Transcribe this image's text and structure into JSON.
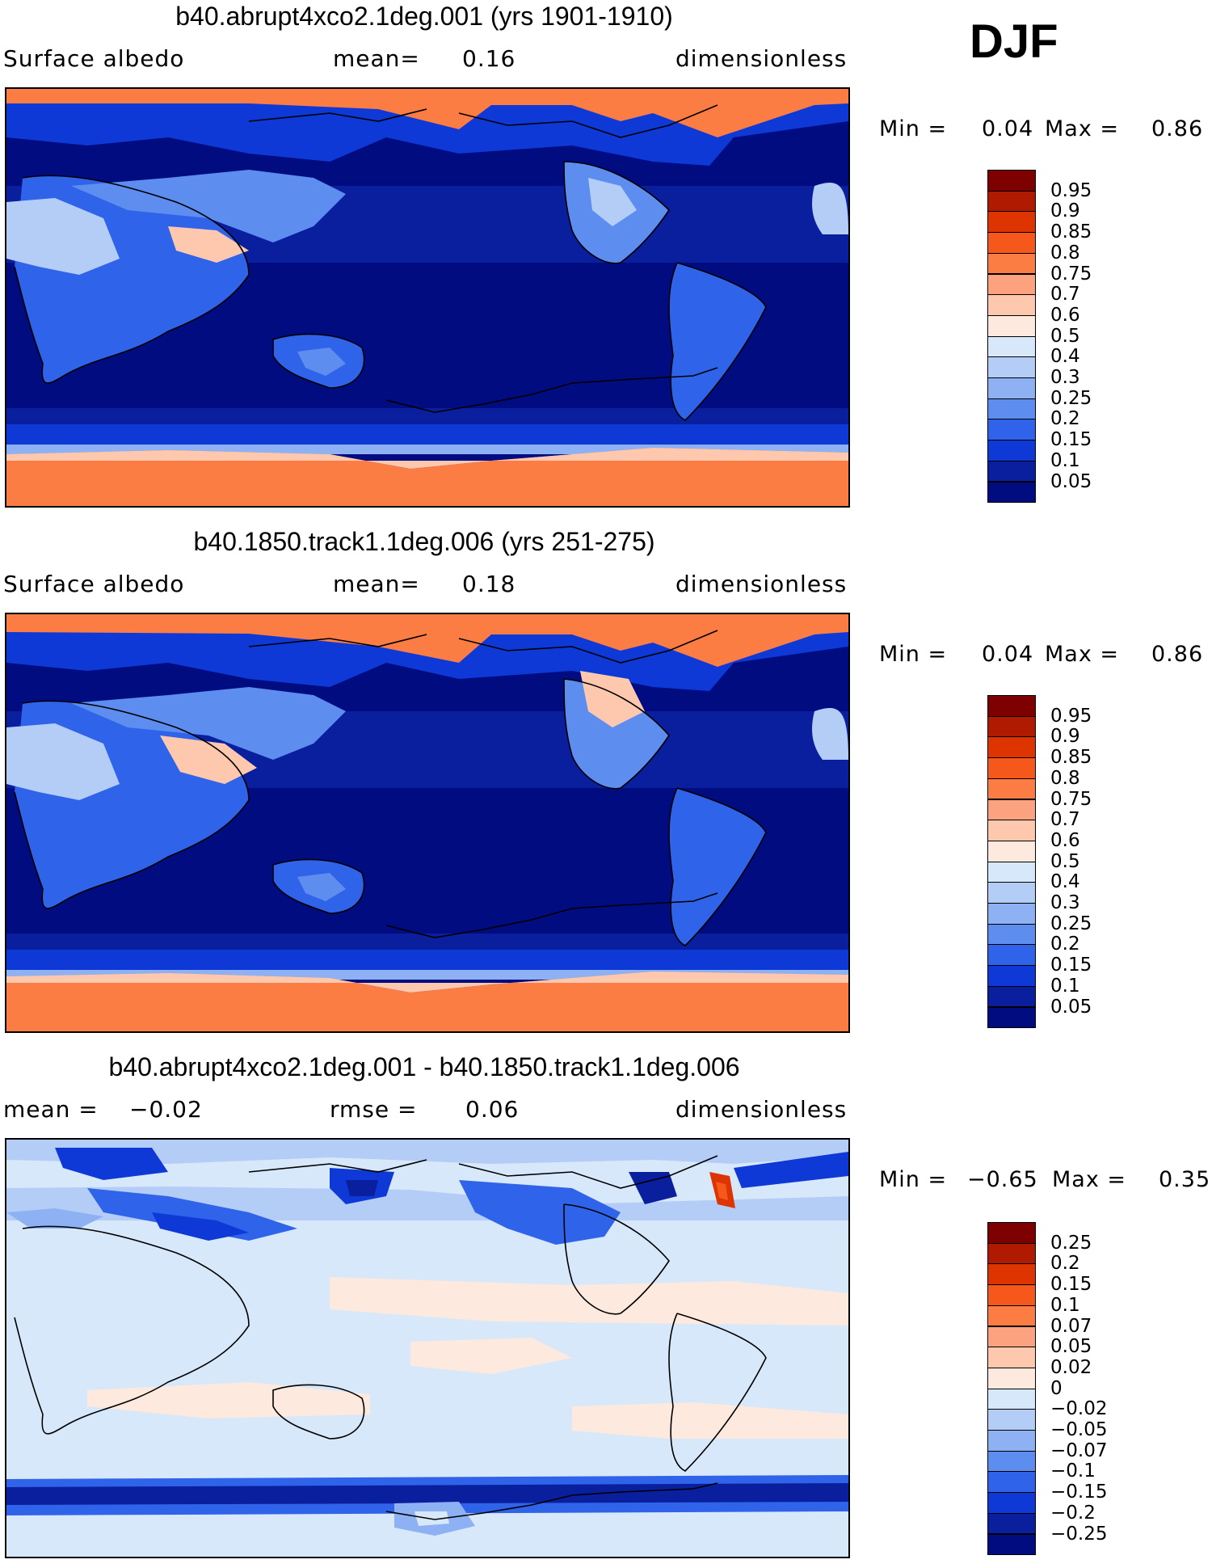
{
  "season": "DJF",
  "panels": [
    {
      "title": "b40.abrupt4xco2.1deg.001 (yrs 1901-1910)",
      "left_label": "Surface albedo",
      "mid_label": "mean=",
      "mid_value": "0.16",
      "units": "dimensionless",
      "min_label": "Min =",
      "min_value": "0.04",
      "max_label": "Max =",
      "max_value": "0.86",
      "colorbar": {
        "labels": [
          "0.95",
          "0.9",
          "0.85",
          "0.8",
          "0.75",
          "0.7",
          "0.6",
          "0.5",
          "0.4",
          "0.3",
          "0.25",
          "0.2",
          "0.15",
          "0.1",
          "0.05"
        ],
        "colors": [
          "#7f0000",
          "#b01a00",
          "#dd3400",
          "#f6581c",
          "#fb7d44",
          "#fca27f",
          "#fdc8ad",
          "#fde9dd",
          "#d8e8fb",
          "#b4cdf7",
          "#8db1f3",
          "#5e8df0",
          "#2f63ea",
          "#0e39d6",
          "#0a1f9e",
          "#000c80"
        ]
      }
    },
    {
      "title": "b40.1850.track1.1deg.006 (yrs 251-275)",
      "left_label": "Surface albedo",
      "mid_label": "mean=",
      "mid_value": "0.18",
      "units": "dimensionless",
      "min_label": "Min =",
      "min_value": "0.04",
      "max_label": "Max =",
      "max_value": "0.86",
      "colorbar": {
        "labels": [
          "0.95",
          "0.9",
          "0.85",
          "0.8",
          "0.75",
          "0.7",
          "0.6",
          "0.5",
          "0.4",
          "0.3",
          "0.25",
          "0.2",
          "0.15",
          "0.1",
          "0.05"
        ],
        "colors": [
          "#7f0000",
          "#b01a00",
          "#dd3400",
          "#f6581c",
          "#fb7d44",
          "#fca27f",
          "#fdc8ad",
          "#fde9dd",
          "#d8e8fb",
          "#b4cdf7",
          "#8db1f3",
          "#5e8df0",
          "#2f63ea",
          "#0e39d6",
          "#0a1f9e",
          "#000c80"
        ]
      }
    },
    {
      "title": "b40.abrupt4xco2.1deg.001 - b40.1850.track1.1deg.006",
      "left_label": "mean =",
      "left_value": "−0.02",
      "mid_label": "rmse =",
      "mid_value": "0.06",
      "units": "dimensionless",
      "min_label": "Min =",
      "min_value": "−0.65",
      "max_label": "Max =",
      "max_value": "0.35",
      "colorbar": {
        "labels": [
          "0.25",
          "0.2",
          "0.15",
          "0.1",
          "0.07",
          "0.05",
          "0.02",
          "0",
          "−0.02",
          "−0.05",
          "−0.07",
          "−0.1",
          "−0.15",
          "−0.2",
          "−0.25"
        ],
        "colors": [
          "#7f0000",
          "#b01a00",
          "#dd3400",
          "#f6581c",
          "#fb7d44",
          "#fca27f",
          "#fdc8ad",
          "#fde9dd",
          "#d8e8fb",
          "#b4cdf7",
          "#8db1f3",
          "#5e8df0",
          "#2f63ea",
          "#0e39d6",
          "#0a1f9e",
          "#000c80"
        ]
      }
    }
  ]
}
